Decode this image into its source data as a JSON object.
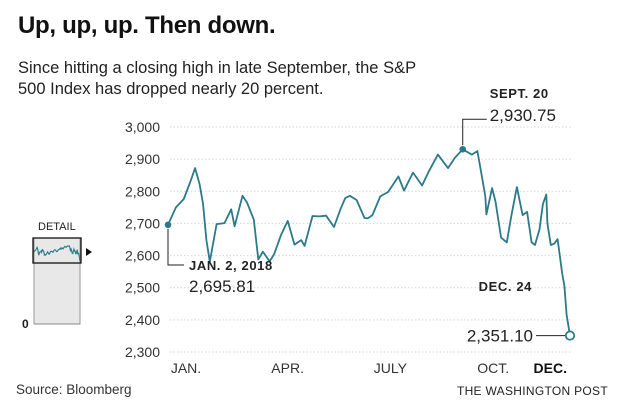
{
  "title": "Up, up, up. Then down.",
  "subtitle": "Since hitting a closing high in late September, the S&P 500 Index has dropped nearly 20 percent.",
  "source": "Source: Bloomberg",
  "credit": "THE WASHINGTON POST",
  "line_color": "#2b7a8a",
  "chart_data": {
    "type": "line",
    "ylim": [
      2300,
      3000
    ],
    "yticks": [
      "3,000",
      "2,900",
      "2,800",
      "2,700",
      "2,600",
      "2,500",
      "2,400",
      "2,300"
    ],
    "ytick_values": [
      3000,
      2900,
      2800,
      2700,
      2600,
      2500,
      2400,
      2300
    ],
    "xticks": [
      {
        "label": "JAN.",
        "x": "2018-01-02"
      },
      {
        "label": "APR.",
        "x": "2018-04-02"
      },
      {
        "label": "JULY",
        "x": "2018-07-02"
      },
      {
        "label": "OCT.",
        "x": "2018-10-01"
      },
      {
        "label": "DEC.",
        "x": "2018-12-03"
      }
    ],
    "grid": true,
    "series": [
      {
        "points": [
          [
            "2018-01-02",
            2695.81
          ],
          [
            "2018-01-09",
            2750
          ],
          [
            "2018-01-16",
            2776
          ],
          [
            "2018-01-22",
            2832
          ],
          [
            "2018-01-26",
            2872
          ],
          [
            "2018-01-30",
            2822
          ],
          [
            "2018-02-02",
            2762
          ],
          [
            "2018-02-05",
            2648
          ],
          [
            "2018-02-08",
            2581
          ],
          [
            "2018-02-14",
            2698
          ],
          [
            "2018-02-21",
            2701
          ],
          [
            "2018-02-27",
            2744
          ],
          [
            "2018-03-02",
            2691
          ],
          [
            "2018-03-09",
            2786
          ],
          [
            "2018-03-13",
            2765
          ],
          [
            "2018-03-19",
            2712
          ],
          [
            "2018-03-23",
            2588
          ],
          [
            "2018-03-27",
            2612
          ],
          [
            "2018-04-02",
            2582
          ],
          [
            "2018-04-06",
            2604
          ],
          [
            "2018-04-12",
            2663
          ],
          [
            "2018-04-18",
            2708
          ],
          [
            "2018-04-24",
            2634
          ],
          [
            "2018-04-30",
            2648
          ],
          [
            "2018-05-03",
            2630
          ],
          [
            "2018-05-10",
            2723
          ],
          [
            "2018-05-16",
            2722
          ],
          [
            "2018-05-22",
            2724
          ],
          [
            "2018-05-29",
            2689
          ],
          [
            "2018-06-04",
            2747
          ],
          [
            "2018-06-08",
            2779
          ],
          [
            "2018-06-12",
            2786
          ],
          [
            "2018-06-18",
            2773
          ],
          [
            "2018-06-25",
            2717
          ],
          [
            "2018-06-28",
            2716
          ],
          [
            "2018-07-02",
            2726
          ],
          [
            "2018-07-09",
            2784
          ],
          [
            "2018-07-16",
            2798
          ],
          [
            "2018-07-25",
            2846
          ],
          [
            "2018-07-30",
            2802
          ],
          [
            "2018-08-07",
            2858
          ],
          [
            "2018-08-15",
            2818
          ],
          [
            "2018-08-21",
            2862
          ],
          [
            "2018-08-29",
            2914
          ],
          [
            "2018-09-07",
            2872
          ],
          [
            "2018-09-13",
            2904
          ],
          [
            "2018-09-20",
            2930.75
          ],
          [
            "2018-09-28",
            2914
          ],
          [
            "2018-10-03",
            2925
          ],
          [
            "2018-10-05",
            2885
          ],
          [
            "2018-10-10",
            2785
          ],
          [
            "2018-10-11",
            2728
          ],
          [
            "2018-10-16",
            2810
          ],
          [
            "2018-10-19",
            2768
          ],
          [
            "2018-10-24",
            2656
          ],
          [
            "2018-10-29",
            2641
          ],
          [
            "2018-11-02",
            2723
          ],
          [
            "2018-11-07",
            2813
          ],
          [
            "2018-11-12",
            2726
          ],
          [
            "2018-11-16",
            2736
          ],
          [
            "2018-11-20",
            2641
          ],
          [
            "2018-11-23",
            2633
          ],
          [
            "2018-11-27",
            2682
          ],
          [
            "2018-11-30",
            2760
          ],
          [
            "2018-12-03",
            2790
          ],
          [
            "2018-12-04",
            2700
          ],
          [
            "2018-12-07",
            2633
          ],
          [
            "2018-12-10",
            2637
          ],
          [
            "2018-12-13",
            2651
          ],
          [
            "2018-12-17",
            2546
          ],
          [
            "2018-12-19",
            2506
          ],
          [
            "2018-12-21",
            2416
          ],
          [
            "2018-12-24",
            2351.1
          ]
        ]
      }
    ],
    "annotations": [
      {
        "label": "SEPT. 20",
        "value": "2,930.75",
        "x": "2018-09-20",
        "y": 2930.75
      },
      {
        "label": "JAN. 2, 2018",
        "value": "2,695.81",
        "x": "2018-01-02",
        "y": 2695.81
      },
      {
        "label": "DEC. 24",
        "value": "2,351.10",
        "x": "2018-12-24",
        "y": 2351.1
      }
    ]
  },
  "detail_inset": {
    "label": "DETAIL",
    "zero_label": "0"
  }
}
